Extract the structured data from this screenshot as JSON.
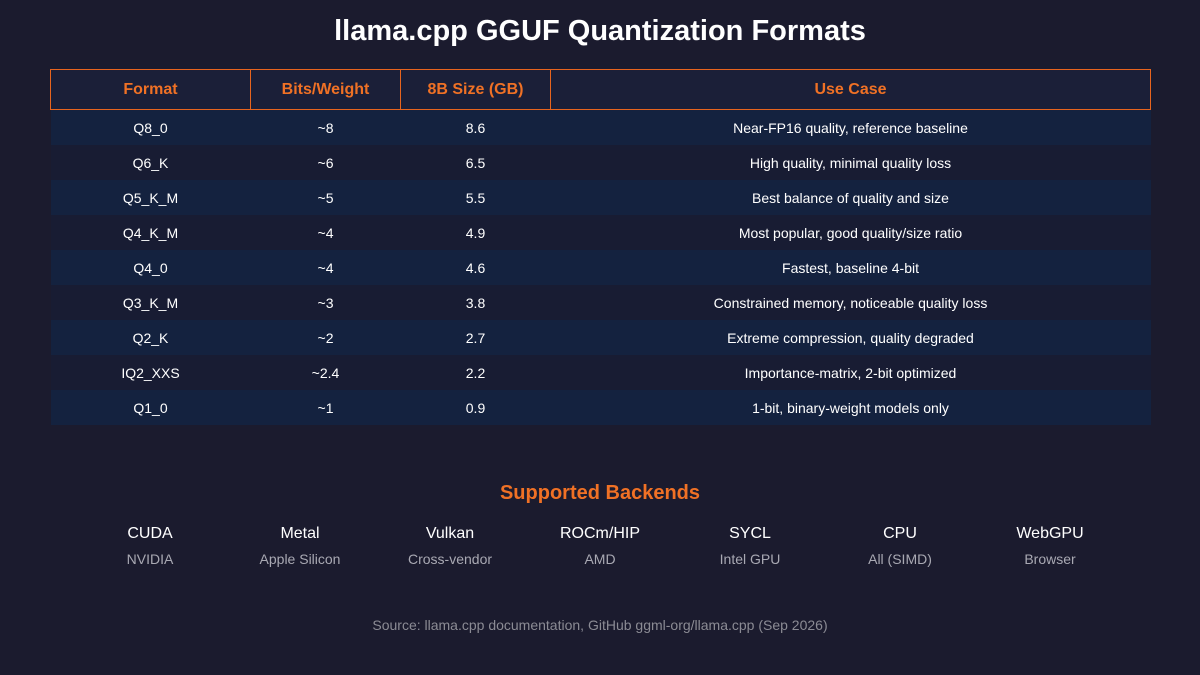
{
  "title": "llama.cpp GGUF Quantization Formats",
  "colors": {
    "background": "#1b1b2e",
    "accent": "#f07125",
    "row_odd": "#14223f",
    "row_even": "#181c33"
  },
  "table": {
    "headers": [
      "Format",
      "Bits/Weight",
      "8B Size (GB)",
      "Use Case"
    ],
    "rows": [
      [
        "Q8_0",
        "~8",
        "8.6",
        "Near-FP16 quality, reference baseline"
      ],
      [
        "Q6_K",
        "~6",
        "6.5",
        "High quality, minimal quality loss"
      ],
      [
        "Q5_K_M",
        "~5",
        "5.5",
        "Best balance of quality and size"
      ],
      [
        "Q4_K_M",
        "~4",
        "4.9",
        "Most popular, good quality/size ratio"
      ],
      [
        "Q4_0",
        "~4",
        "4.6",
        "Fastest, baseline 4-bit"
      ],
      [
        "Q3_K_M",
        "~3",
        "3.8",
        "Constrained memory, noticeable quality loss"
      ],
      [
        "Q2_K",
        "~2",
        "2.7",
        "Extreme compression, quality degraded"
      ],
      [
        "IQ2_XXS",
        "~2.4",
        "2.2",
        "Importance-matrix, 2-bit optimized"
      ],
      [
        "Q1_0",
        "~1",
        "0.9",
        "1-bit, binary-weight models only"
      ]
    ]
  },
  "backends": {
    "title": "Supported Backends",
    "items": [
      {
        "name": "CUDA",
        "vendor": "NVIDIA"
      },
      {
        "name": "Metal",
        "vendor": "Apple Silicon"
      },
      {
        "name": "Vulkan",
        "vendor": "Cross-vendor"
      },
      {
        "name": "ROCm/HIP",
        "vendor": "AMD"
      },
      {
        "name": "SYCL",
        "vendor": "Intel GPU"
      },
      {
        "name": "CPU",
        "vendor": "All (SIMD)"
      },
      {
        "name": "WebGPU",
        "vendor": "Browser"
      }
    ]
  },
  "source": "Source: llama.cpp documentation, GitHub ggml-org/llama.cpp (Sep 2026)"
}
